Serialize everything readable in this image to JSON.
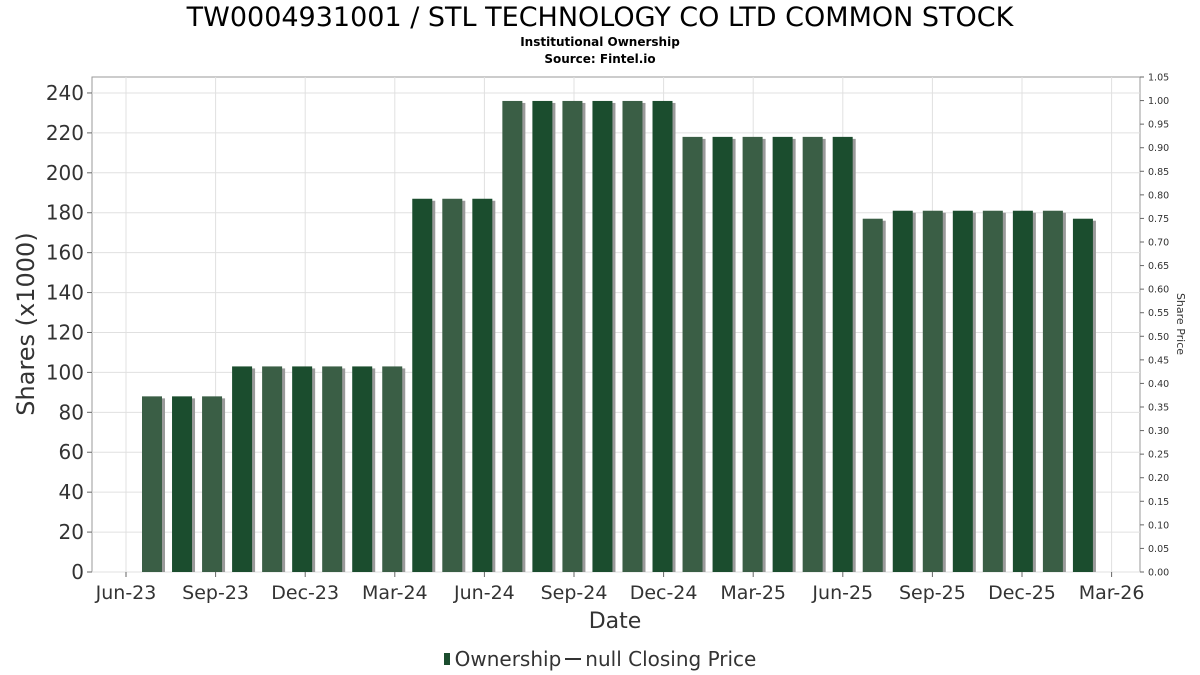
{
  "title": "TW0004931001 / STL TECHNOLOGY CO LTD COMMON STOCK",
  "subtitle": "Institutional Ownership",
  "source": "Source: Fintel.io",
  "legend": {
    "ownership": "Ownership",
    "price": "null Closing Price"
  },
  "colors": {
    "bar_dark": "#1b4d2e",
    "bar_light": "#3a5e45",
    "bar_shadow": "#9a9a9a",
    "grid": "#e0e0e0"
  },
  "chart_data": {
    "type": "bar",
    "xlabel": "Date",
    "ylabel": "Shares (x1000)",
    "y2label": "Share Price",
    "ylim": [
      0,
      248
    ],
    "y2lim": [
      0,
      1.05
    ],
    "yticks": [
      0,
      20,
      40,
      60,
      80,
      100,
      120,
      140,
      160,
      180,
      200,
      220,
      240
    ],
    "y2ticks": [
      "0.00",
      "0.05",
      "0.10",
      "0.15",
      "0.20",
      "0.25",
      "0.30",
      "0.35",
      "0.40",
      "0.45",
      "0.50",
      "0.55",
      "0.60",
      "0.65",
      "0.70",
      "0.75",
      "0.80",
      "0.85",
      "0.90",
      "0.95",
      "1.00",
      "1.05"
    ],
    "xticks": [
      "Jun-23",
      "Sep-23",
      "Dec-23",
      "Mar-24",
      "Jun-24",
      "Sep-24",
      "Dec-24",
      "Mar-25",
      "Jun-25",
      "Sep-25",
      "Dec-25",
      "Mar-26"
    ],
    "grid": true,
    "legend_position": "bottom",
    "series": [
      {
        "name": "Ownership",
        "values": [
          88,
          88,
          88,
          103,
          103,
          103,
          103,
          103,
          103,
          187,
          187,
          187,
          236,
          236,
          236,
          236,
          236,
          236,
          218,
          218,
          218,
          218,
          218,
          218,
          177,
          181,
          181,
          181,
          181,
          181,
          181,
          177
        ]
      }
    ]
  }
}
